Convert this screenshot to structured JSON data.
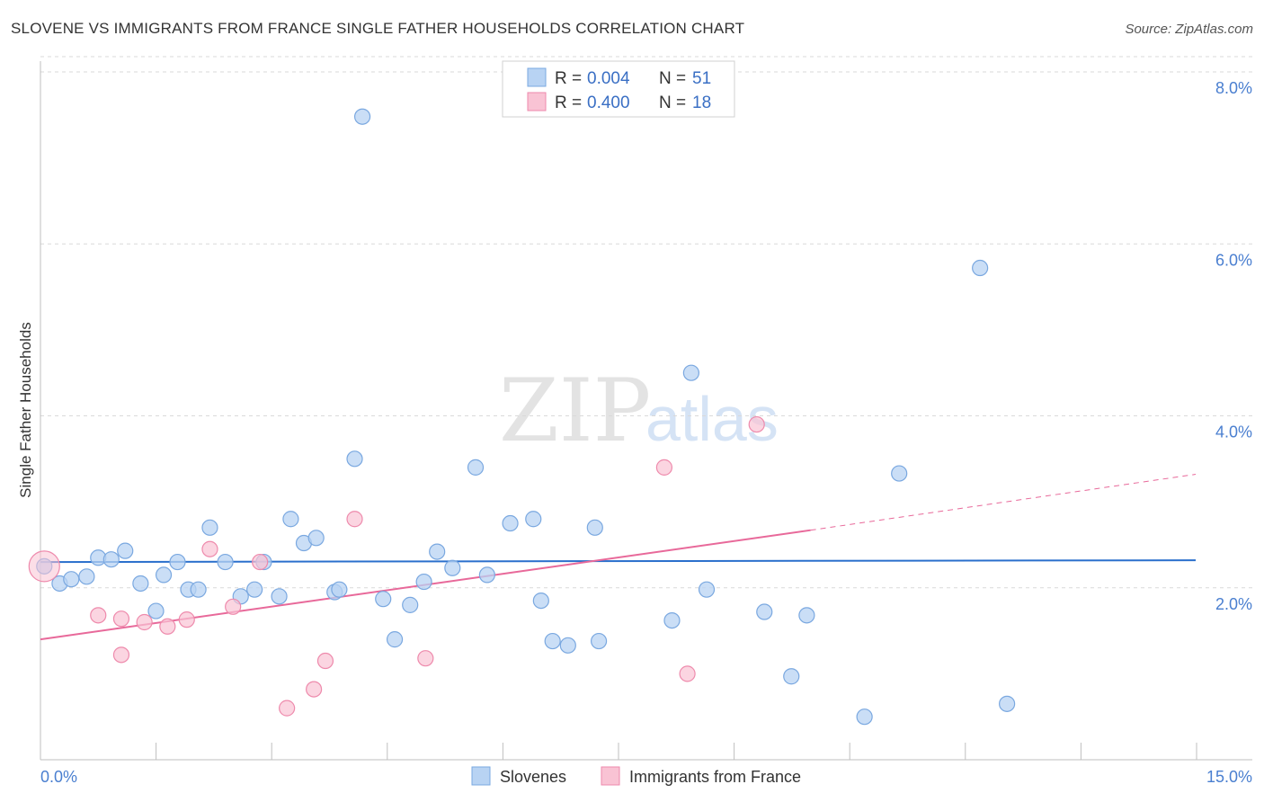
{
  "header": {
    "title": "SLOVENE VS IMMIGRANTS FROM FRANCE SINGLE FATHER HOUSEHOLDS CORRELATION CHART",
    "source": "Source: ZipAtlas.com"
  },
  "watermark": {
    "zip": "ZIP",
    "atlas": "atlas"
  },
  "legend": {
    "r_label": "R =",
    "n_label": "N =",
    "slovenes": {
      "r": "0.004",
      "n": "51"
    },
    "france": {
      "r": "0.400",
      "n": "18"
    }
  },
  "colors": {
    "slovenes_fill": "#b8d3f3",
    "slovenes_stroke": "#7aa8e0",
    "slovenes_line": "#2a6fcc",
    "france_fill": "#f9c3d4",
    "france_stroke": "#ee8aac",
    "france_line": "#e8699a",
    "grid": "#d9d9d9",
    "axis_text": "#4a7fd0"
  },
  "chart_data": {
    "type": "scatter",
    "title": "SLOVENE VS IMMIGRANTS FROM FRANCE SINGLE FATHER HOUSEHOLDS CORRELATION CHART",
    "xlabel": "",
    "ylabel": "Single Father Households",
    "xlim": [
      0,
      15
    ],
    "ylim": [
      0,
      8.3
    ],
    "x_tick_labels": [
      "0.0%",
      "15.0%"
    ],
    "y_ticks": [
      2.0,
      4.0,
      6.0,
      8.0
    ],
    "y_tick_labels": [
      "2.0%",
      "4.0%",
      "6.0%",
      "8.0%"
    ],
    "series": [
      {
        "name": "Slovenes",
        "r": 0.004,
        "n": 51,
        "points": [
          [
            0.05,
            2.25
          ],
          [
            0.25,
            2.05
          ],
          [
            0.4,
            2.1
          ],
          [
            0.6,
            2.13
          ],
          [
            0.75,
            2.35
          ],
          [
            0.92,
            2.33
          ],
          [
            1.1,
            2.43
          ],
          [
            1.3,
            2.05
          ],
          [
            1.5,
            1.73
          ],
          [
            1.6,
            2.15
          ],
          [
            1.78,
            2.3
          ],
          [
            1.92,
            1.98
          ],
          [
            2.05,
            1.98
          ],
          [
            2.2,
            2.7
          ],
          [
            2.4,
            2.3
          ],
          [
            2.6,
            1.9
          ],
          [
            2.78,
            1.98
          ],
          [
            2.9,
            2.3
          ],
          [
            3.1,
            1.9
          ],
          [
            3.25,
            2.8
          ],
          [
            3.42,
            2.52
          ],
          [
            3.58,
            2.58
          ],
          [
            3.82,
            1.95
          ],
          [
            3.88,
            1.98
          ],
          [
            4.08,
            3.5
          ],
          [
            4.18,
            7.48
          ],
          [
            4.45,
            1.87
          ],
          [
            4.6,
            1.4
          ],
          [
            4.8,
            1.8
          ],
          [
            4.98,
            2.07
          ],
          [
            5.15,
            2.42
          ],
          [
            5.35,
            2.23
          ],
          [
            5.65,
            3.4
          ],
          [
            5.8,
            2.15
          ],
          [
            6.1,
            2.75
          ],
          [
            6.4,
            2.8
          ],
          [
            6.5,
            1.85
          ],
          [
            6.65,
            1.38
          ],
          [
            6.85,
            1.33
          ],
          [
            7.2,
            2.7
          ],
          [
            7.25,
            1.38
          ],
          [
            8.2,
            1.62
          ],
          [
            8.45,
            4.5
          ],
          [
            8.65,
            1.98
          ],
          [
            9.4,
            1.72
          ],
          [
            9.75,
            0.97
          ],
          [
            9.95,
            1.68
          ],
          [
            10.7,
            0.5
          ],
          [
            11.15,
            3.33
          ],
          [
            12.2,
            5.72
          ],
          [
            12.55,
            0.65
          ]
        ],
        "trend": {
          "x": [
            0,
            15
          ],
          "y": [
            2.3,
            2.32
          ]
        }
      },
      {
        "name": "Immigrants from France",
        "r": 0.4,
        "n": 18,
        "points": [
          [
            0.05,
            2.25
          ],
          [
            0.75,
            1.68
          ],
          [
            1.05,
            1.64
          ],
          [
            1.05,
            1.22
          ],
          [
            1.35,
            1.6
          ],
          [
            1.65,
            1.55
          ],
          [
            1.9,
            1.63
          ],
          [
            2.2,
            2.45
          ],
          [
            2.5,
            1.78
          ],
          [
            2.85,
            2.3
          ],
          [
            3.2,
            0.6
          ],
          [
            3.55,
            0.82
          ],
          [
            3.7,
            1.15
          ],
          [
            4.08,
            2.8
          ],
          [
            5.0,
            1.18
          ],
          [
            8.1,
            3.4
          ],
          [
            8.4,
            1.0
          ],
          [
            9.3,
            3.9
          ]
        ],
        "trend": {
          "x": [
            0,
            10.0
          ],
          "y": [
            1.4,
            2.67
          ]
        },
        "trend_dashed": {
          "x": [
            10.0,
            15
          ],
          "y": [
            2.67,
            3.32
          ]
        }
      }
    ]
  },
  "bottom_legend": {
    "slovenes": "Slovenes",
    "france": "Immigrants from France"
  }
}
